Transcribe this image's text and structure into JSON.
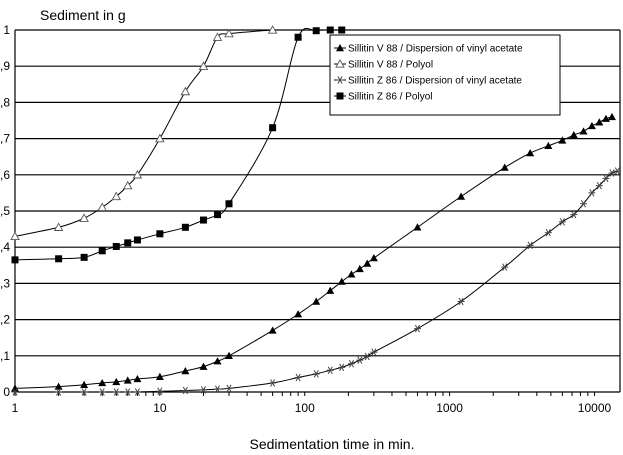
{
  "chart_data": {
    "type": "line",
    "title": "",
    "ylabel": "Sediment in g",
    "xlabel": "Sedimentation time in min.",
    "x_scale": "log",
    "xlim": [
      1,
      15000
    ],
    "ylim": [
      0,
      1
    ],
    "grid": "horizontal",
    "legend_position": "top-right",
    "x_ticks": [
      1,
      10,
      100,
      1000,
      10000
    ],
    "x_tick_labels": [
      "1",
      "10",
      "100",
      "1000",
      "10000"
    ],
    "y_ticks": [
      0,
      0.1,
      0.2,
      0.3,
      0.4,
      0.5,
      0.6,
      0.7,
      0.8,
      0.9,
      1
    ],
    "y_tick_labels": [
      "0",
      "0,1",
      "0,2",
      "0,3",
      "0,4",
      "0,5",
      "0,6",
      "0,7",
      "0,8",
      "0,9",
      "1"
    ],
    "series": [
      {
        "name": "Sillitin V 88 / Dispersion of vinyl acetate",
        "marker": "filled-triangle",
        "color": "#000000",
        "x": [
          1,
          2,
          3,
          4,
          5,
          6,
          7,
          10,
          15,
          20,
          25,
          30,
          60,
          90,
          120,
          150,
          180,
          210,
          240,
          270,
          300,
          600,
          1200,
          2400,
          3600,
          4800,
          6000,
          7200,
          8400,
          9600,
          10800,
          12000,
          13200
        ],
        "y": [
          0.01,
          0.015,
          0.02,
          0.025,
          0.028,
          0.032,
          0.036,
          0.042,
          0.058,
          0.07,
          0.085,
          0.1,
          0.17,
          0.215,
          0.25,
          0.28,
          0.305,
          0.325,
          0.34,
          0.355,
          0.37,
          0.455,
          0.54,
          0.62,
          0.66,
          0.68,
          0.695,
          0.71,
          0.72,
          0.735,
          0.745,
          0.755,
          0.76
        ]
      },
      {
        "name": "Sillitin V 88 / Polyol",
        "marker": "open-triangle",
        "color": "#000000",
        "x": [
          1,
          2,
          3,
          4,
          5,
          6,
          7,
          10,
          15,
          20,
          25,
          30,
          60
        ],
        "y": [
          0.43,
          0.455,
          0.48,
          0.51,
          0.54,
          0.57,
          0.6,
          0.7,
          0.83,
          0.9,
          0.98,
          0.99,
          1.0
        ]
      },
      {
        "name": "Sillitin Z 86 / Dispersion of vinyl acetate",
        "marker": "star",
        "color": "#000000",
        "x": [
          1,
          2,
          3,
          4,
          5,
          6,
          7,
          10,
          15,
          20,
          25,
          30,
          60,
          90,
          120,
          150,
          180,
          210,
          240,
          270,
          300,
          600,
          1200,
          2400,
          3600,
          4800,
          6000,
          7200,
          8400,
          9600,
          10800,
          12000,
          13200,
          14400
        ],
        "y": [
          0.0,
          0.0,
          0.0,
          0.0,
          0.0,
          0.0,
          0.0,
          0.002,
          0.004,
          0.006,
          0.008,
          0.01,
          0.025,
          0.04,
          0.05,
          0.06,
          0.068,
          0.078,
          0.088,
          0.098,
          0.11,
          0.175,
          0.25,
          0.345,
          0.405,
          0.44,
          0.47,
          0.49,
          0.52,
          0.55,
          0.57,
          0.59,
          0.605,
          0.61
        ]
      },
      {
        "name": "Sillitin Z 86 / Polyol",
        "marker": "filled-square",
        "color": "#000000",
        "x": [
          1,
          2,
          3,
          4,
          5,
          6,
          7,
          10,
          15,
          20,
          25,
          30,
          60,
          90,
          120,
          150,
          180
        ],
        "y": [
          0.365,
          0.368,
          0.372,
          0.39,
          0.402,
          0.412,
          0.42,
          0.437,
          0.455,
          0.475,
          0.49,
          0.52,
          0.73,
          0.98,
          0.998,
          1.0,
          1.0
        ]
      }
    ]
  }
}
